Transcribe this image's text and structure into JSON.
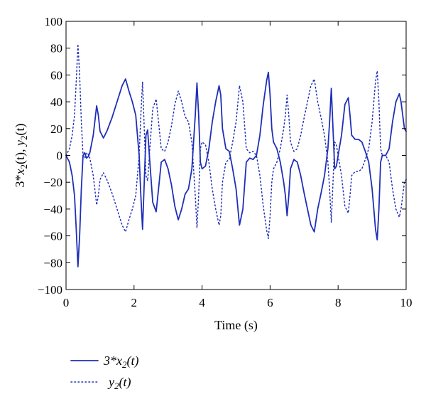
{
  "chart_data": {
    "type": "line",
    "xlabel": "Time (s)",
    "ylabel_parts": [
      "3*",
      "x",
      "2",
      "(t), ",
      "y",
      "2",
      "(t)"
    ],
    "xlim": [
      0,
      10
    ],
    "ylim": [
      -100,
      100
    ],
    "xticks": [
      0,
      2,
      4,
      6,
      8,
      10
    ],
    "yticks": [
      -100,
      -80,
      -60,
      -40,
      -20,
      0,
      20,
      40,
      60,
      80,
      100
    ],
    "grid": false,
    "legend_position": "below",
    "line_color": "#1f2fb8",
    "series": [
      {
        "name_parts": [
          "3*",
          "x",
          "2",
          "(t)"
        ],
        "style": "solid",
        "x": [
          0,
          0.1,
          0.18,
          0.25,
          0.3,
          0.35,
          0.4,
          0.45,
          0.5,
          0.55,
          0.6,
          0.65,
          0.7,
          0.8,
          0.9,
          0.95,
          1.0,
          1.1,
          1.2,
          1.35,
          1.5,
          1.65,
          1.75,
          1.85,
          1.95,
          2.05,
          2.15,
          2.2,
          2.25,
          2.3,
          2.35,
          2.4,
          2.45,
          2.55,
          2.65,
          2.72,
          2.8,
          2.9,
          3.0,
          3.1,
          3.2,
          3.3,
          3.4,
          3.5,
          3.6,
          3.7,
          3.8,
          3.85,
          3.9,
          3.95,
          4.0,
          4.1,
          4.2,
          4.3,
          4.4,
          4.5,
          4.55,
          4.6,
          4.7,
          4.8,
          4.9,
          5.0,
          5.1,
          5.2,
          5.3,
          5.4,
          5.5,
          5.6,
          5.7,
          5.8,
          5.9,
          5.95,
          6.0,
          6.05,
          6.1,
          6.2,
          6.3,
          6.4,
          6.45,
          6.5,
          6.55,
          6.6,
          6.7,
          6.8,
          6.9,
          7.0,
          7.1,
          7.2,
          7.3,
          7.4,
          7.5,
          7.6,
          7.7,
          7.75,
          7.8,
          7.85,
          7.9,
          7.95,
          8.0,
          8.1,
          8.2,
          8.3,
          8.35,
          8.4,
          8.5,
          8.6,
          8.7,
          8.8,
          8.9,
          9.0,
          9.1,
          9.15,
          9.2,
          9.25,
          9.3,
          9.4,
          9.5,
          9.6,
          9.7,
          9.8,
          9.85,
          9.9,
          9.95,
          10.0
        ],
        "y": [
          0,
          -5,
          -15,
          -30,
          -55,
          -83,
          -60,
          -25,
          0,
          2,
          -2,
          -1,
          2,
          15,
          37,
          30,
          18,
          13,
          18,
          28,
          40,
          52,
          57,
          48,
          40,
          30,
          0,
          -30,
          -55,
          -20,
          15,
          19,
          0,
          -35,
          -42,
          -25,
          -5,
          -3,
          -10,
          -22,
          -38,
          -48,
          -40,
          -29,
          -25,
          -10,
          30,
          54,
          30,
          -5,
          -10,
          -8,
          5,
          25,
          40,
          52,
          45,
          20,
          5,
          3,
          -10,
          -25,
          -52,
          -40,
          -5,
          -2,
          -3,
          0,
          15,
          38,
          56,
          62,
          45,
          20,
          10,
          5,
          -5,
          -20,
          -30,
          -45,
          -30,
          -10,
          -3,
          -5,
          -15,
          -28,
          -40,
          -52,
          -57,
          -40,
          -28,
          -15,
          5,
          25,
          50,
          20,
          -10,
          -8,
          0,
          15,
          38,
          43,
          30,
          15,
          12,
          12,
          10,
          3,
          -5,
          -25,
          -55,
          -63,
          -40,
          -5,
          0,
          0,
          5,
          25,
          40,
          46,
          40,
          30,
          20,
          18
        ]
      },
      {
        "name_parts": [
          "y",
          "2",
          "(t)"
        ],
        "style": "dotted",
        "x": [
          0,
          0.1,
          0.18,
          0.25,
          0.3,
          0.35,
          0.4,
          0.45,
          0.5,
          0.55,
          0.6,
          0.65,
          0.7,
          0.8,
          0.9,
          0.95,
          1.0,
          1.1,
          1.2,
          1.35,
          1.5,
          1.65,
          1.75,
          1.85,
          1.95,
          2.05,
          2.15,
          2.2,
          2.25,
          2.3,
          2.35,
          2.4,
          2.45,
          2.55,
          2.65,
          2.72,
          2.8,
          2.9,
          3.0,
          3.1,
          3.2,
          3.3,
          3.4,
          3.5,
          3.6,
          3.7,
          3.8,
          3.85,
          3.9,
          3.95,
          4.0,
          4.1,
          4.2,
          4.3,
          4.4,
          4.5,
          4.55,
          4.6,
          4.7,
          4.8,
          4.9,
          5.0,
          5.1,
          5.2,
          5.3,
          5.4,
          5.5,
          5.6,
          5.7,
          5.8,
          5.9,
          5.95,
          6.0,
          6.05,
          6.1,
          6.2,
          6.3,
          6.4,
          6.45,
          6.5,
          6.55,
          6.6,
          6.7,
          6.8,
          6.9,
          7.0,
          7.1,
          7.2,
          7.3,
          7.4,
          7.5,
          7.6,
          7.7,
          7.75,
          7.8,
          7.85,
          7.9,
          7.95,
          8.0,
          8.1,
          8.2,
          8.3,
          8.35,
          8.4,
          8.5,
          8.6,
          8.7,
          8.8,
          8.9,
          9.0,
          9.1,
          9.15,
          9.2,
          9.25,
          9.3,
          9.4,
          9.5,
          9.6,
          9.7,
          9.8,
          9.85,
          9.9,
          9.95,
          10.0
        ],
        "y": [
          0,
          5,
          15,
          30,
          55,
          83,
          60,
          25,
          0,
          -2,
          2,
          1,
          -2,
          -15,
          -37,
          -30,
          -18,
          -13,
          -18,
          -28,
          -40,
          -52,
          -57,
          -48,
          -40,
          -30,
          0,
          30,
          55,
          20,
          -15,
          -19,
          0,
          35,
          42,
          25,
          5,
          3,
          10,
          22,
          38,
          48,
          40,
          29,
          25,
          10,
          -30,
          -54,
          -30,
          5,
          10,
          8,
          -5,
          -25,
          -40,
          -52,
          -45,
          -20,
          -5,
          -3,
          10,
          25,
          52,
          40,
          5,
          2,
          3,
          0,
          -15,
          -38,
          -56,
          -62,
          -45,
          -20,
          -10,
          -5,
          5,
          20,
          30,
          45,
          30,
          10,
          3,
          5,
          15,
          28,
          40,
          52,
          57,
          40,
          28,
          15,
          -5,
          -25,
          -50,
          -20,
          10,
          8,
          0,
          -15,
          -38,
          -43,
          -30,
          -15,
          -12,
          -12,
          -10,
          -3,
          5,
          25,
          55,
          63,
          40,
          5,
          0,
          0,
          -5,
          -25,
          -40,
          -46,
          -40,
          -30,
          -20,
          -18
        ]
      }
    ]
  }
}
